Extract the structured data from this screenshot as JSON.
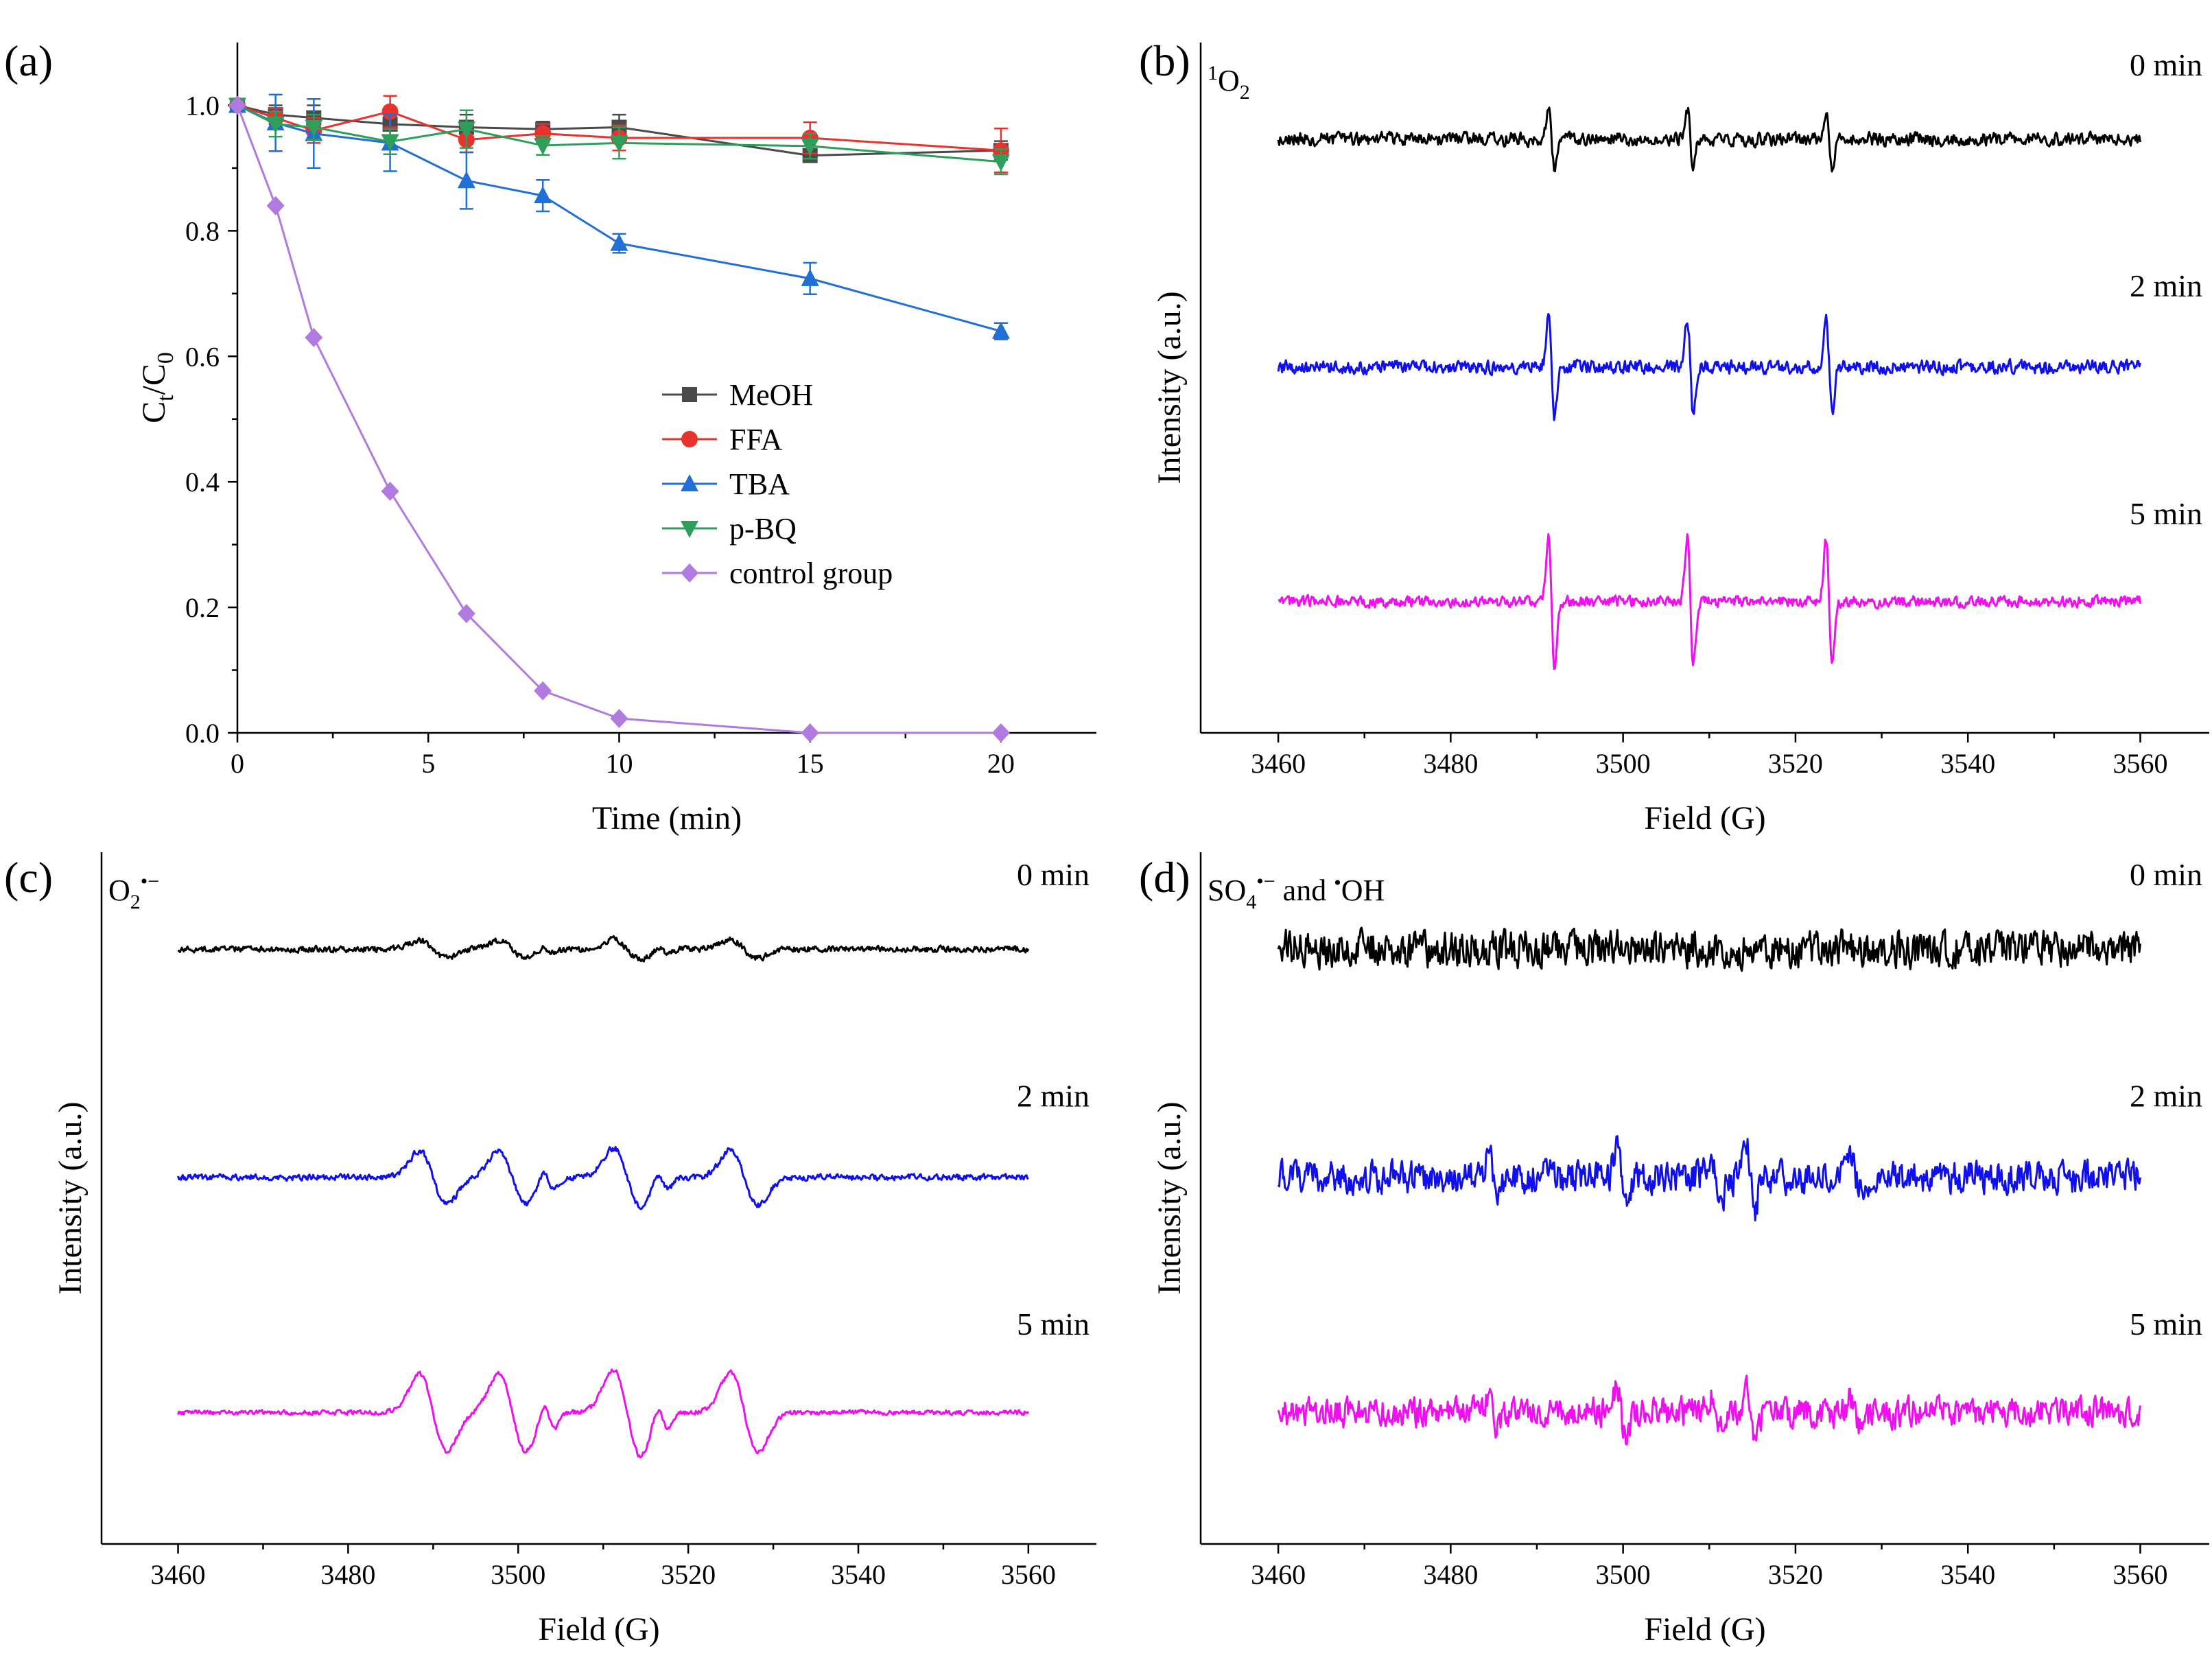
{
  "chart_data": [
    {
      "panel": "(a)",
      "type": "line",
      "xlabel": "Time (min)",
      "ylabel_main": "C",
      "ylabel_sub1": "t",
      "ylabel_mid": "/C",
      "ylabel_sub2": "0",
      "xlim": [
        0,
        22.5
      ],
      "ylim": [
        0,
        1.1
      ],
      "xticks": [
        0,
        5,
        10,
        15,
        20
      ],
      "xtick_labels": [
        "0",
        "5",
        "10",
        "15",
        "20"
      ],
      "yticks": [
        0.0,
        0.2,
        0.4,
        0.6,
        0.8,
        1.0
      ],
      "ytick_labels": [
        "0.0",
        "0.2",
        "0.4",
        "0.6",
        "0.8",
        "1.0"
      ],
      "x": [
        0,
        1,
        2,
        4,
        6,
        8,
        10,
        15,
        20
      ],
      "legend_position": "center-right",
      "series": [
        {
          "name": "MeOH",
          "color": "#4a4a4a",
          "marker": "square",
          "values": [
            1.0,
            0.985,
            0.98,
            0.97,
            0.965,
            0.962,
            0.965,
            0.92,
            0.928
          ],
          "errors": [
            0,
            0.015,
            0.02,
            0.02,
            0.02,
            0.012,
            0.02,
            0.01,
            0.015
          ]
        },
        {
          "name": "FFA",
          "color": "#e8322e",
          "marker": "circle",
          "values": [
            1.0,
            0.98,
            0.96,
            0.99,
            0.945,
            0.955,
            0.948,
            0.948,
            0.928
          ],
          "errors": [
            0,
            0.015,
            0.02,
            0.025,
            0.02,
            0.015,
            0.02,
            0.025,
            0.035
          ]
        },
        {
          "name": "TBA",
          "color": "#1f6fd6",
          "marker": "triangle-up",
          "values": [
            1.0,
            0.972,
            0.955,
            0.94,
            0.88,
            0.856,
            0.78,
            0.724,
            0.64
          ],
          "errors": [
            0,
            0.045,
            0.055,
            0.045,
            0.045,
            0.025,
            0.015,
            0.025,
            0.013
          ]
        },
        {
          "name": "p-BQ",
          "color": "#2e9e5b",
          "marker": "triangle-down",
          "values": [
            1.0,
            0.97,
            0.965,
            0.942,
            0.962,
            0.936,
            0.94,
            0.935,
            0.91
          ],
          "errors": [
            0,
            0.02,
            0.02,
            0.02,
            0.03,
            0.015,
            0.025,
            0.02,
            0.02
          ]
        },
        {
          "name": "control group",
          "color": "#b07ae0",
          "marker": "diamond",
          "values": [
            1.0,
            0.84,
            0.63,
            0.385,
            0.19,
            0.067,
            0.023,
            0.0,
            0.0
          ],
          "errors": [
            0,
            0,
            0,
            0,
            0,
            0,
            0,
            0,
            0
          ]
        }
      ]
    },
    {
      "panel": "(b)",
      "type": "line",
      "species": "1O2",
      "species_sup": "1",
      "species_base": "O",
      "species_sub": "2",
      "xlabel": "Field (G)",
      "ylabel": "Intensity (a.u.)",
      "xlim": [
        3451,
        3568
      ],
      "xticks": [
        3460,
        3480,
        3500,
        3520,
        3540,
        3560
      ],
      "xtick_labels": [
        "3460",
        "3480",
        "3500",
        "3520",
        "3540",
        "3560"
      ],
      "range": [
        3460,
        3560
      ],
      "noise": 0.1,
      "traces": [
        {
          "label": "0 min",
          "color": "#000000",
          "amp": 0.55,
          "noise": 0.11
        },
        {
          "label": "2 min",
          "color": "#1010ee",
          "amp": 0.9,
          "noise": 0.11
        },
        {
          "label": "5 min",
          "color": "#ee10ee",
          "amp": 1.2,
          "noise": 0.09
        }
      ],
      "lines": [
        {
          "center": 3491.7,
          "width": 0.35,
          "rel": 1.0
        },
        {
          "center": 3507.8,
          "width": 0.35,
          "rel": 1.0
        },
        {
          "center": 3523.9,
          "width": 0.35,
          "rel": 0.95
        }
      ]
    },
    {
      "panel": "(c)",
      "type": "line",
      "species": "O2•−",
      "species_base": "O",
      "species_sub": "2",
      "species_sup": "•−",
      "xlabel": "Field (G)",
      "ylabel": "Intensity (a.u.)",
      "xlim": [
        3451,
        3568
      ],
      "xticks": [
        3460,
        3480,
        3500,
        3520,
        3540,
        3560
      ],
      "xtick_labels": [
        "3460",
        "3480",
        "3500",
        "3520",
        "3540",
        "3560"
      ],
      "range": [
        3460,
        3560
      ],
      "traces": [
        {
          "label": "0 min",
          "color": "#000000",
          "amp": 0.18,
          "noise": 0.05
        },
        {
          "label": "2 min",
          "color": "#1010ee",
          "amp": 0.55,
          "noise": 0.05
        },
        {
          "label": "5 min",
          "color": "#ee10ee",
          "amp": 0.8,
          "noise": 0.04
        }
      ],
      "lines": [
        {
          "center": 3490.0,
          "width": 1.6,
          "rel": 0.9
        },
        {
          "center": 3503.6,
          "width": 0.7,
          "rel": 0.35
        },
        {
          "center": 3499.3,
          "width": 1.6,
          "rel": 0.9
        },
        {
          "center": 3512.8,
          "width": 1.6,
          "rel": 1.0
        },
        {
          "center": 3517.0,
          "width": 0.7,
          "rel": 0.35
        },
        {
          "center": 3526.6,
          "width": 1.6,
          "rel": 0.95
        }
      ]
    },
    {
      "panel": "(d)",
      "type": "line",
      "species": "SO4•− and •OH",
      "species_base": "SO",
      "species_sub": "4",
      "species_sup": "•−",
      "species_mid": " and ",
      "species_sup2": "•",
      "species_tail": "OH",
      "xlabel": "Field (G)",
      "ylabel": "Intensity (a.u.)",
      "xlim": [
        3451,
        3568
      ],
      "xticks": [
        3460,
        3480,
        3500,
        3520,
        3540,
        3560
      ],
      "xtick_labels": [
        "3460",
        "3480",
        "3500",
        "3520",
        "3540",
        "3560"
      ],
      "range": [
        3460,
        3560
      ],
      "traces": [
        {
          "label": "0 min",
          "color": "#000000",
          "amp": 0.0,
          "noise": 0.3
        },
        {
          "label": "2 min",
          "color": "#1010ee",
          "amp": 0.55,
          "noise": 0.26
        },
        {
          "label": "5 min",
          "color": "#ee10ee",
          "amp": 0.5,
          "noise": 0.24
        }
      ],
      "lines": [
        {
          "center": 3485.0,
          "width": 0.6,
          "rel": 0.6
        },
        {
          "center": 3499.8,
          "width": 0.5,
          "rel": 1.0
        },
        {
          "center": 3514.8,
          "width": 0.5,
          "rel": 1.0
        },
        {
          "center": 3510.9,
          "width": 0.6,
          "rel": 0.6
        },
        {
          "center": 3527.0,
          "width": 0.6,
          "rel": 0.5
        }
      ]
    }
  ]
}
